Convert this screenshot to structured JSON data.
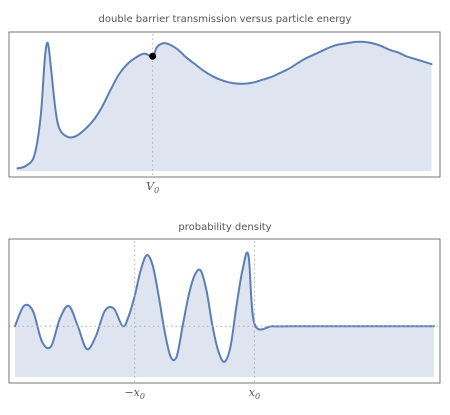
{
  "colors": {
    "curve": "#5b7fb5",
    "fill": "#dfe5f0",
    "frame": "#555555",
    "marker": "#000000"
  },
  "chart_data": [
    {
      "type": "area",
      "title": "double barrier transmission versus particle energy",
      "xlabel": "",
      "ylabel": "",
      "x_ticks": [
        {
          "x": 0.32,
          "main": "V",
          "sub": "0"
        }
      ],
      "reference_lines": [
        {
          "axis": "x",
          "x": 0.32
        }
      ],
      "xlim": [
        -0.02,
        1.0
      ],
      "ylim": [
        -0.02,
        1.0
      ],
      "highlight_point": {
        "x": 0.32,
        "y": 0.86
      },
      "series": [
        {
          "x": [
            0.0,
            0.02,
            0.04,
            0.055,
            0.065,
            0.072,
            0.08,
            0.09,
            0.1,
            0.12,
            0.14,
            0.16,
            0.18,
            0.2,
            0.22,
            0.24,
            0.26,
            0.28,
            0.3,
            0.32,
            0.33,
            0.345,
            0.36,
            0.38,
            0.4,
            0.42,
            0.44,
            0.46,
            0.48,
            0.5,
            0.52,
            0.54,
            0.56,
            0.58,
            0.6,
            0.62,
            0.64,
            0.66,
            0.68,
            0.7,
            0.72,
            0.74,
            0.76,
            0.78,
            0.8,
            0.82,
            0.84,
            0.86,
            0.88,
            0.9,
            0.92,
            0.94,
            0.96,
            0.98
          ],
          "y": [
            0.0,
            0.02,
            0.1,
            0.4,
            0.85,
            0.96,
            0.75,
            0.45,
            0.3,
            0.24,
            0.25,
            0.3,
            0.37,
            0.47,
            0.6,
            0.72,
            0.8,
            0.85,
            0.88,
            0.86,
            0.93,
            0.96,
            0.95,
            0.91,
            0.85,
            0.8,
            0.75,
            0.71,
            0.68,
            0.66,
            0.65,
            0.65,
            0.66,
            0.68,
            0.7,
            0.73,
            0.76,
            0.8,
            0.84,
            0.87,
            0.9,
            0.93,
            0.95,
            0.96,
            0.97,
            0.97,
            0.96,
            0.94,
            0.91,
            0.89,
            0.86,
            0.84,
            0.82,
            0.8
          ]
        }
      ]
    },
    {
      "type": "area",
      "title": "probability density",
      "xlabel": "",
      "ylabel": "",
      "x_ticks": [
        {
          "x": -1,
          "main": "−x",
          "sub": "0"
        },
        {
          "x": 1,
          "main": "x",
          "sub": "0"
        }
      ],
      "reference_lines": [
        {
          "axis": "x",
          "x": -1
        },
        {
          "axis": "x",
          "x": 1
        },
        {
          "axis": "y",
          "y": 1
        }
      ],
      "xlim": [
        -3.1,
        4.1
      ],
      "ylim": [
        0.0,
        2.6
      ],
      "series": [
        {
          "x": [
            -3.0,
            -2.85,
            -2.7,
            -2.55,
            -2.4,
            -2.25,
            -2.1,
            -1.95,
            -1.8,
            -1.65,
            -1.5,
            -1.35,
            -1.2,
            -1.1,
            -1.0,
            -0.9,
            -0.8,
            -0.7,
            -0.6,
            -0.5,
            -0.4,
            -0.3,
            -0.2,
            -0.1,
            0.0,
            0.1,
            0.2,
            0.3,
            0.4,
            0.5,
            0.6,
            0.7,
            0.8,
            0.9,
            1.0,
            1.3,
            1.6,
            2.0,
            2.5,
            3.0,
            3.5,
            4.0
          ],
          "y": [
            1.0,
            1.4,
            1.3,
            0.7,
            0.6,
            1.15,
            1.4,
            1.0,
            0.55,
            0.8,
            1.3,
            1.35,
            1.0,
            1.2,
            1.6,
            2.1,
            2.4,
            2.2,
            1.6,
            0.9,
            0.4,
            0.4,
            1.0,
            1.6,
            2.0,
            2.1,
            1.7,
            1.0,
            0.5,
            0.3,
            0.6,
            1.4,
            2.1,
            2.4,
            1.05,
            1.0,
            1.0,
            1.0,
            1.0,
            1.0,
            1.0,
            1.0
          ]
        }
      ]
    }
  ]
}
